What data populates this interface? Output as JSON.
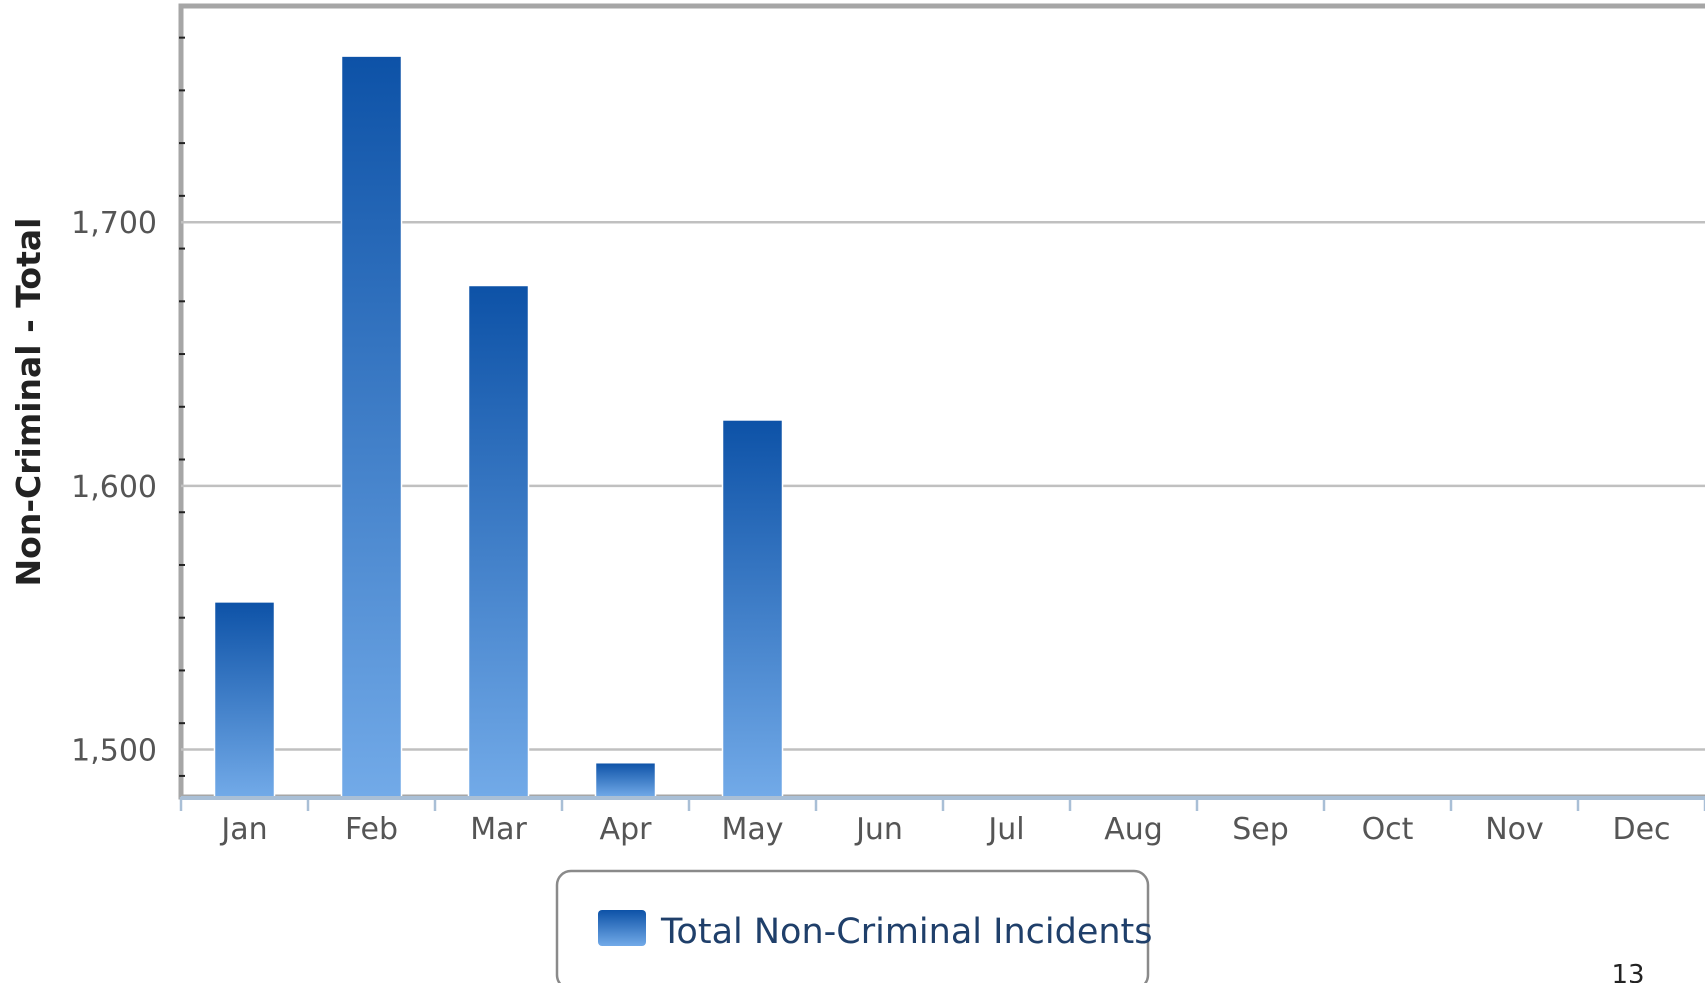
{
  "chart_data": {
    "type": "bar",
    "categories": [
      "Jan",
      "Feb",
      "Mar",
      "Apr",
      "May",
      "Jun",
      "Jul",
      "Aug",
      "Sep",
      "Oct",
      "Nov",
      "Dec"
    ],
    "series": [
      {
        "name": "Total Non-Criminal Incidents",
        "values": [
          1556,
          1763,
          1676,
          1495,
          1625,
          null,
          null,
          null,
          null,
          null,
          null,
          null
        ]
      }
    ],
    "ylabel": "Non-Criminal - Total",
    "ylim": [
      1482,
      1782
    ],
    "yticks": [
      1500,
      1600,
      1700
    ],
    "ytick_labels": [
      "1,500",
      "1,600",
      "1,700"
    ],
    "grid": true,
    "legend_position": "bottom-center",
    "colors": {
      "bar_top": "#0d52a7",
      "bar_bottom": "#72aae8",
      "gridline": "#c0c0c0",
      "frame": "#a6a6a6"
    }
  },
  "page_number": "13"
}
